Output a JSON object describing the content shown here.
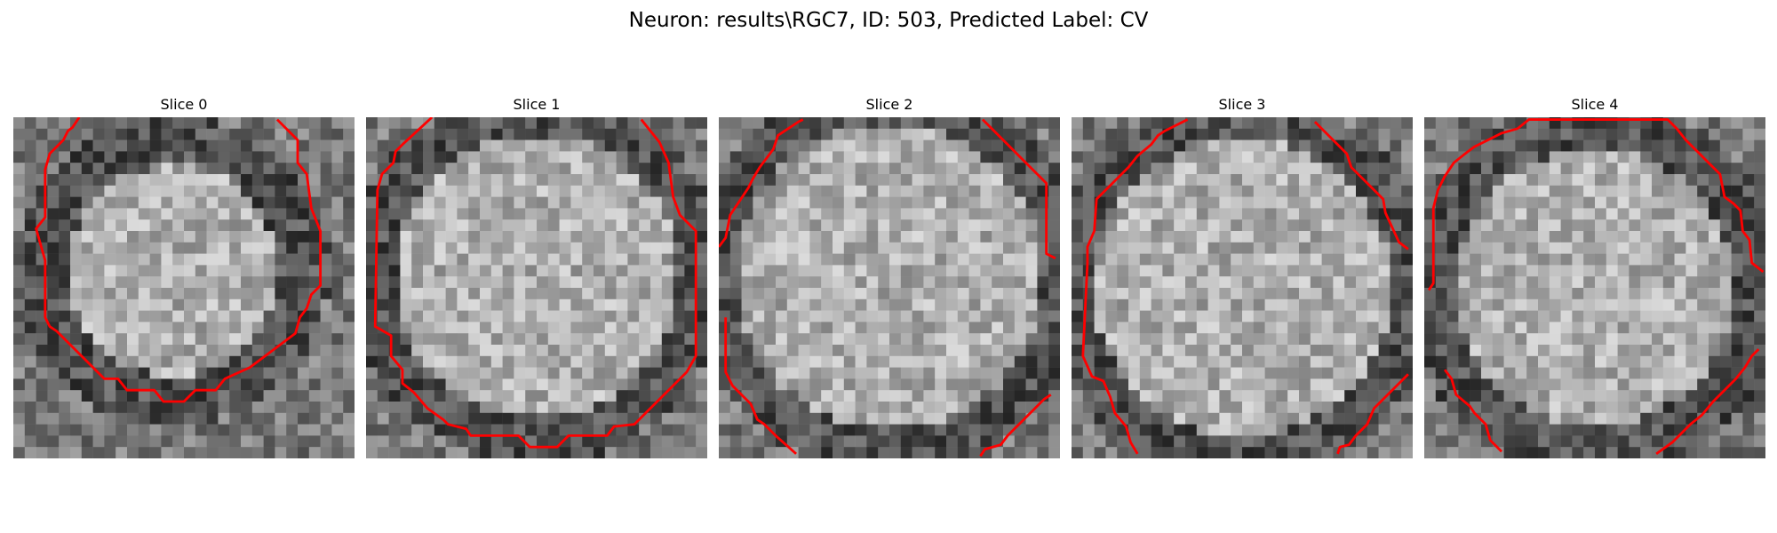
{
  "figure": {
    "title": "Neuron: results\\RGC7, ID: 503, Predicted Label: CV",
    "contour_color": "#ff0000"
  },
  "slices": [
    {
      "title": "Slice 0"
    },
    {
      "title": "Slice 1"
    },
    {
      "title": "Slice 2"
    },
    {
      "title": "Slice 3"
    },
    {
      "title": "Slice 4"
    }
  ]
}
